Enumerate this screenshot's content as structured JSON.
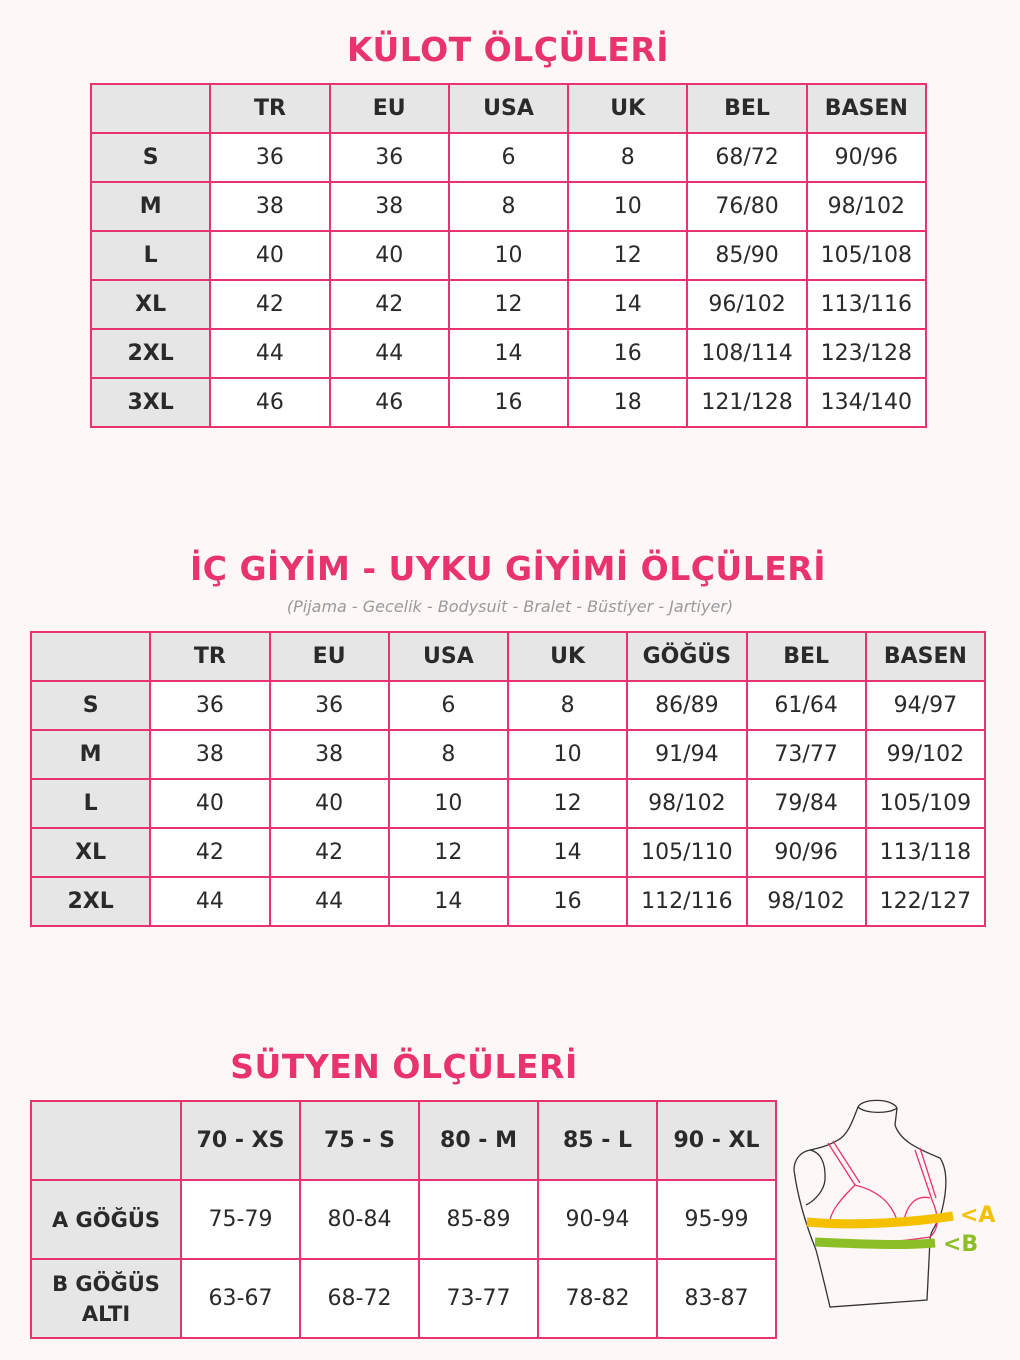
{
  "kulot": {
    "title": "KÜLOT ÖLÇÜLERİ",
    "headers": [
      "",
      "TR",
      "EU",
      "USA",
      "UK",
      "BEL",
      "BASEN"
    ],
    "rows": [
      [
        "S",
        "36",
        "36",
        "6",
        "8",
        "68/72",
        "90/96"
      ],
      [
        "M",
        "38",
        "38",
        "8",
        "10",
        "76/80",
        "98/102"
      ],
      [
        "L",
        "40",
        "40",
        "10",
        "12",
        "85/90",
        "105/108"
      ],
      [
        "XL",
        "42",
        "42",
        "12",
        "14",
        "96/102",
        "113/116"
      ],
      [
        "2XL",
        "44",
        "44",
        "14",
        "16",
        "108/114",
        "123/128"
      ],
      [
        "3XL",
        "46",
        "46",
        "16",
        "18",
        "121/128",
        "134/140"
      ]
    ]
  },
  "ic_giyim": {
    "title": "İÇ GİYİM - UYKU GİYİMİ ÖLÇÜLERİ",
    "subtitle": "(Pijama - Gecelik - Bodysuit - Bralet - Büstiyer - Jartiyer)",
    "headers": [
      "",
      "TR",
      "EU",
      "USA",
      "UK",
      "GÖĞÜS",
      "BEL",
      "BASEN"
    ],
    "rows": [
      [
        "S",
        "36",
        "36",
        "6",
        "8",
        "86/89",
        "61/64",
        "94/97"
      ],
      [
        "M",
        "38",
        "38",
        "8",
        "10",
        "91/94",
        "73/77",
        "99/102"
      ],
      [
        "L",
        "40",
        "40",
        "10",
        "12",
        "98/102",
        "79/84",
        "105/109"
      ],
      [
        "XL",
        "42",
        "42",
        "12",
        "14",
        "105/110",
        "90/96",
        "113/118"
      ],
      [
        "2XL",
        "44",
        "44",
        "14",
        "16",
        "112/116",
        "98/102",
        "122/127"
      ]
    ]
  },
  "sutyen": {
    "title": "SÜTYEN ÖLÇÜLERİ",
    "headers": [
      "",
      "70 - XS",
      "75 - S",
      "80 - M",
      "85 - L",
      "90 - XL"
    ],
    "rows": [
      [
        "A GÖĞÜS",
        "75-79",
        "80-84",
        "85-89",
        "90-94",
        "95-99"
      ],
      [
        "B GÖĞÜS ALTI",
        "63-67",
        "68-72",
        "73-77",
        "78-82",
        "83-87"
      ]
    ],
    "diagram": {
      "label_a": "<A",
      "label_b": "<B",
      "color_a": "#f5c000",
      "color_b": "#8cbf26"
    }
  },
  "colors": {
    "accent": "#e8336f",
    "header_bg": "#e6e6e6",
    "background": "#fdf8f7"
  }
}
